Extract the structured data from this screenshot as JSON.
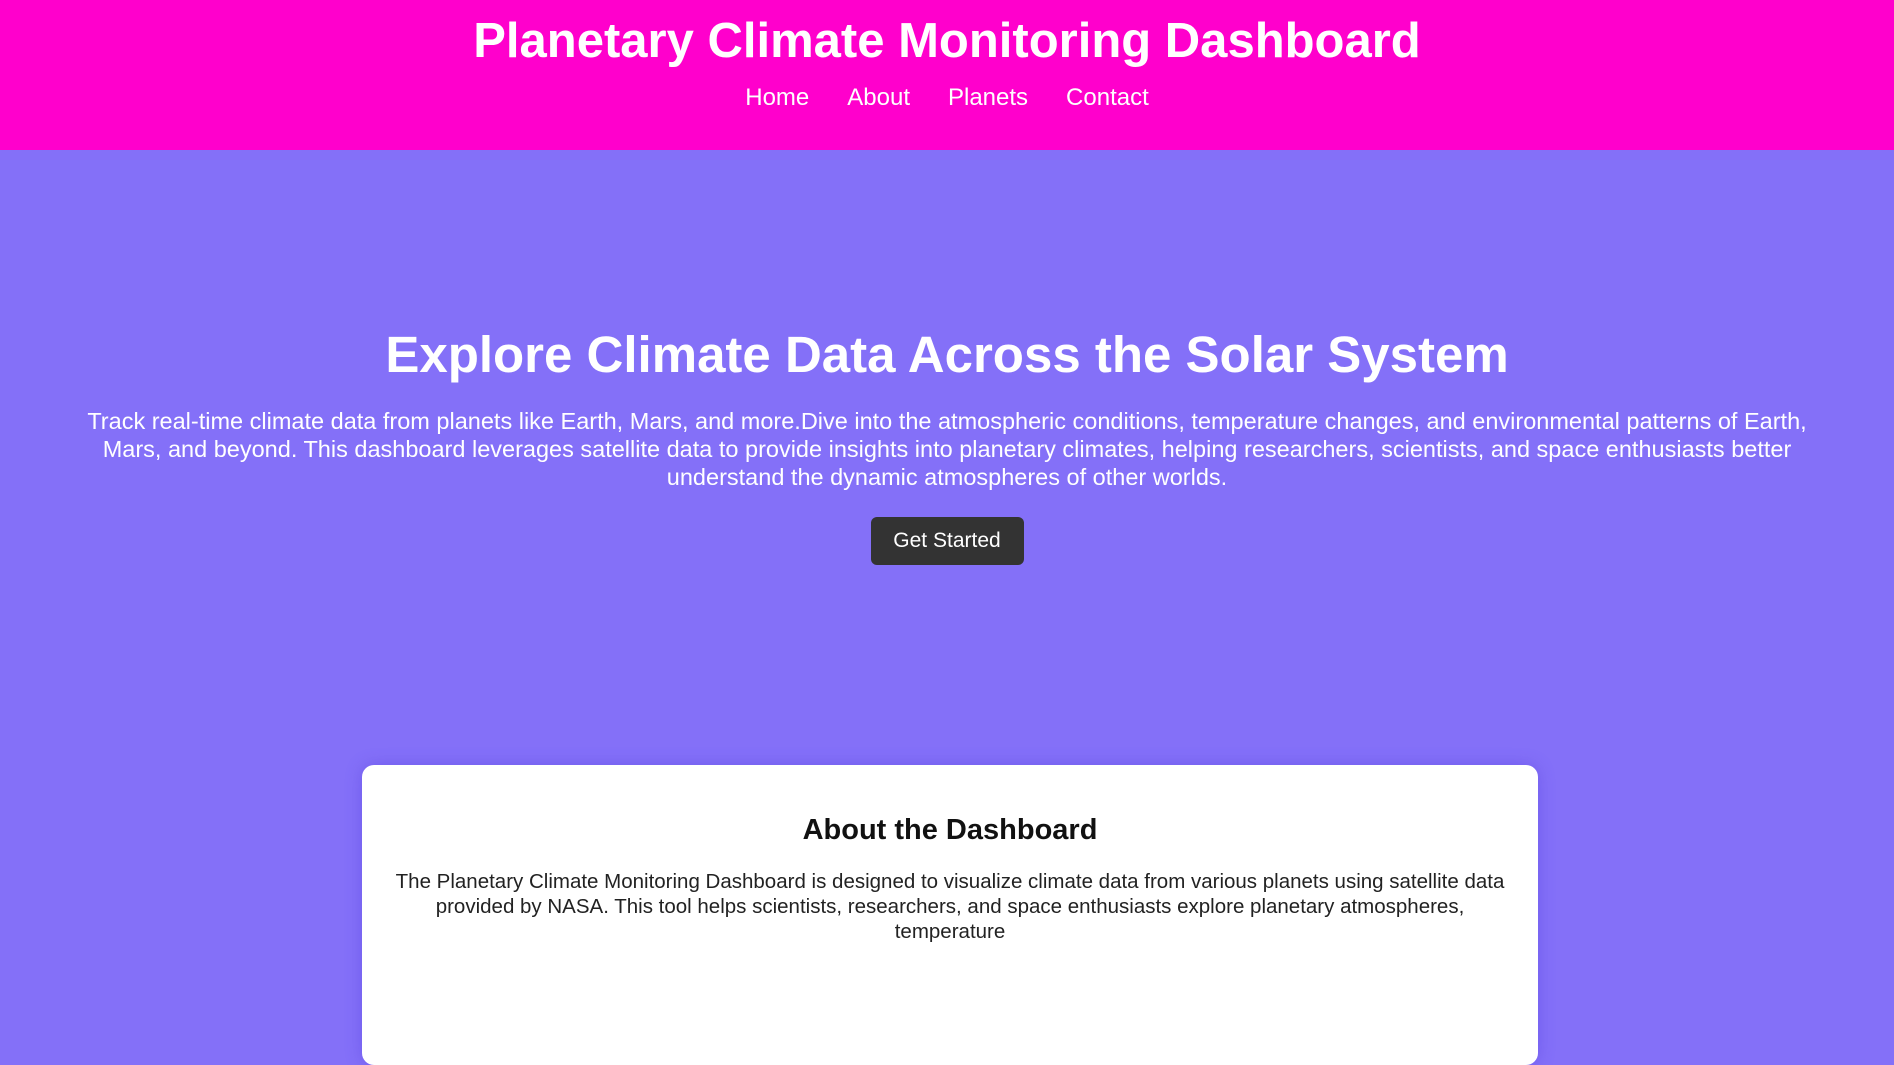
{
  "header": {
    "title": "Planetary Climate Monitoring Dashboard",
    "nav": [
      "Home",
      "About",
      "Planets",
      "Contact"
    ]
  },
  "hero": {
    "title": "Explore Climate Data Across the Solar System",
    "text": "Track real-time climate data from planets like Earth, Mars, and more.Dive into the atmospheric conditions, temperature changes, and environmental patterns of Earth, Mars, and beyond. This dashboard leverages satellite data to provide insights into planetary climates, helping researchers, scientists, and space enthusiasts better understand the dynamic atmospheres of other worlds.",
    "button": "Get Started"
  },
  "about": {
    "title": "About the Dashboard",
    "text": "The Planetary Climate Monitoring Dashboard is designed to visualize climate data from various planets using satellite data provided by NASA. This tool helps scientists, researchers, and space enthusiasts explore planetary atmospheres, temperature"
  }
}
